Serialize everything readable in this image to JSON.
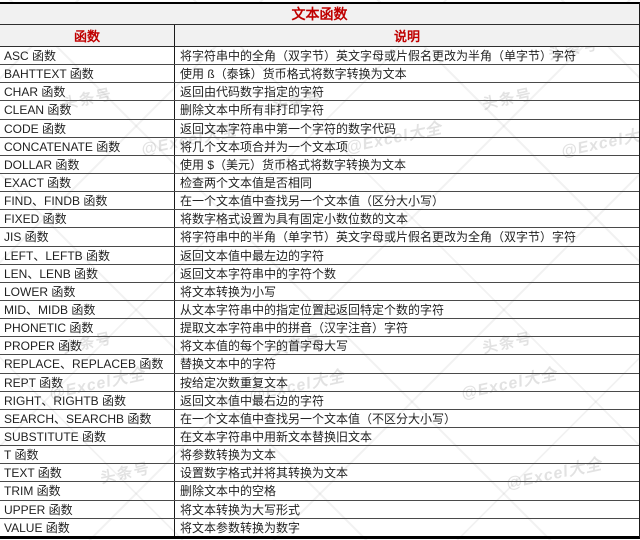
{
  "table": {
    "title": "文本函数",
    "accent_color": "#c00000",
    "header_background": "#f1f1f1",
    "border_color": "#000000",
    "columns": [
      {
        "label": "函数"
      },
      {
        "label": "说明"
      }
    ],
    "rows": [
      {
        "fn": "ASC 函数",
        "desc": "将字符串中的全角（双字节）英文字母或片假名更改为半角（单字节）字符"
      },
      {
        "fn": "BAHTTEXT 函数",
        "desc": "使用 ß（泰铢）货币格式将数字转换为文本"
      },
      {
        "fn": "CHAR 函数",
        "desc": "返回由代码数字指定的字符"
      },
      {
        "fn": "CLEAN 函数",
        "desc": "删除文本中所有非打印字符"
      },
      {
        "fn": "CODE 函数",
        "desc": "返回文本字符串中第一个字符的数字代码"
      },
      {
        "fn": "CONCATENATE 函数",
        "desc": "将几个文本项合并为一个文本项"
      },
      {
        "fn": "DOLLAR 函数",
        "desc": "使用 $（美元）货币格式将数字转换为文本"
      },
      {
        "fn": "EXACT 函数",
        "desc": "检查两个文本值是否相同"
      },
      {
        "fn": "FIND、FINDB 函数",
        "desc": "在一个文本值中查找另一个文本值（区分大小写）"
      },
      {
        "fn": "FIXED 函数",
        "desc": "将数字格式设置为具有固定小数位数的文本"
      },
      {
        "fn": "JIS 函数",
        "desc": "将字符串中的半角（单字节）英文字母或片假名更改为全角（双字节）字符"
      },
      {
        "fn": "LEFT、LEFTB 函数",
        "desc": "返回文本值中最左边的字符"
      },
      {
        "fn": "LEN、LENB 函数",
        "desc": "返回文本字符串中的字符个数"
      },
      {
        "fn": "LOWER 函数",
        "desc": "将文本转换为小写"
      },
      {
        "fn": "MID、MIDB 函数",
        "desc": "从文本字符串中的指定位置起返回特定个数的字符"
      },
      {
        "fn": "PHONETIC 函数",
        "desc": "提取文本字符串中的拼音（汉字注音）字符"
      },
      {
        "fn": "PROPER 函数",
        "desc": "将文本值的每个字的首字母大写"
      },
      {
        "fn": "REPLACE、REPLACEB 函数",
        "desc": "替换文本中的字符"
      },
      {
        "fn": "REPT 函数",
        "desc": "按给定次数重复文本"
      },
      {
        "fn": "RIGHT、RIGHTB 函数",
        "desc": "返回文本值中最右边的字符"
      },
      {
        "fn": "SEARCH、SEARCHB 函数",
        "desc": "在一个文本值中查找另一个文本值（不区分大小写）"
      },
      {
        "fn": "SUBSTITUTE 函数",
        "desc": "在文本字符串中用新文本替换旧文本"
      },
      {
        "fn": "T 函数",
        "desc": "将参数转换为文本"
      },
      {
        "fn": "TEXT 函数",
        "desc": "设置数字格式并将其转换为文本"
      },
      {
        "fn": "TRIM 函数",
        "desc": "删除文本中的空格"
      },
      {
        "fn": "UPPER 函数",
        "desc": "将文本转换为大写形式"
      },
      {
        "fn": "VALUE 函数",
        "desc": "将文本参数转换为数字"
      }
    ]
  },
  "watermark": {
    "brand": "头条号",
    "author": "@Excel大全"
  }
}
